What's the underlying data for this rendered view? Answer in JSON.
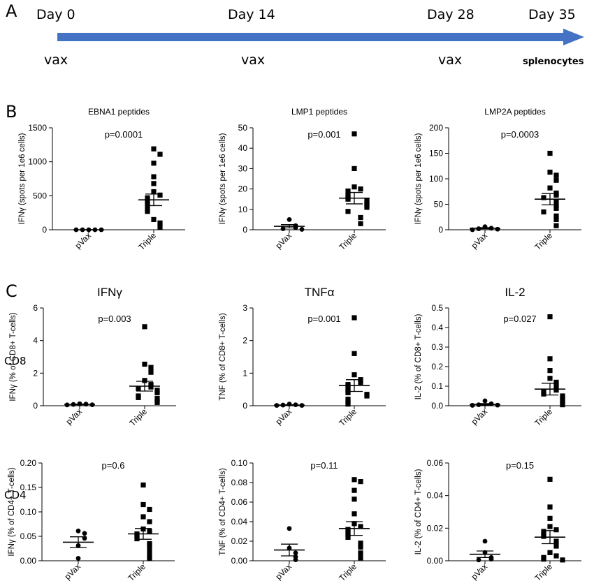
{
  "panels": {
    "a": "A",
    "b": "B",
    "c": "C"
  },
  "timeline": {
    "days": [
      "Day 0",
      "Day 14",
      "Day 28",
      "Day 35"
    ],
    "events": [
      "vax",
      "vax",
      "vax",
      "splenocytes"
    ],
    "arrow_color": "#4472c4"
  },
  "row_labels": {
    "cd8": "CD8",
    "cd4": "CD4"
  },
  "chart_data": [
    {
      "id": "ebna1",
      "type": "scatter",
      "title": "EBNA1 peptides",
      "title_size": 12,
      "ylabel": "IFNγ (spots per 1e6 cells)",
      "pvalue": "p=0.0001",
      "ylim": [
        0,
        1500
      ],
      "yticks": [
        "0",
        "500",
        "1000",
        "1500"
      ],
      "ytick_values": [
        0,
        500,
        1000,
        1500
      ],
      "categories": [
        "pVax",
        "Triple"
      ],
      "series": [
        {
          "name": "pVax",
          "marker": "circle",
          "values": [
            0,
            0,
            0,
            0,
            0
          ],
          "mean": 0,
          "sem": 0
        },
        {
          "name": "Triple",
          "marker": "square",
          "values": [
            1190,
            1110,
            980,
            780,
            680,
            560,
            510,
            470,
            430,
            390,
            360,
            300,
            270,
            150,
            100,
            40
          ],
          "mean": 440,
          "sem": 85
        }
      ]
    },
    {
      "id": "lmp1",
      "type": "scatter",
      "title": "LMP1 peptides",
      "title_size": 12,
      "ylabel": "IFNγ (spots per 1e6 cells)",
      "pvalue": "p=0.001",
      "ylim": [
        0,
        50
      ],
      "yticks": [
        "0",
        "10",
        "20",
        "30",
        "40",
        "50"
      ],
      "ytick_values": [
        0,
        10,
        20,
        30,
        40,
        50
      ],
      "categories": [
        "pVax",
        "Triple"
      ],
      "series": [
        {
          "name": "pVax",
          "marker": "circle",
          "values": [
            5,
            2,
            1,
            0.5,
            0.2
          ],
          "mean": 1.7,
          "sem": 0.8
        },
        {
          "name": "Triple",
          "marker": "square",
          "values": [
            47,
            30,
            21,
            20,
            19,
            17,
            16,
            15,
            14,
            13,
            12,
            11,
            9,
            6,
            3
          ],
          "mean": 15.5,
          "sem": 2.8
        }
      ]
    },
    {
      "id": "lmp2a",
      "type": "scatter",
      "title": "LMP2A peptides",
      "title_size": 12,
      "ylabel": "IFNγ (spots per 1e6 cells)",
      "pvalue": "p=0.0003",
      "ylim": [
        0,
        200
      ],
      "yticks": [
        "0",
        "50",
        "100",
        "150",
        "200"
      ],
      "ytick_values": [
        0,
        50,
        100,
        150,
        200
      ],
      "categories": [
        "pVax",
        "Triple"
      ],
      "series": [
        {
          "name": "pVax",
          "marker": "circle",
          "values": [
            6,
            3,
            2,
            1,
            0
          ],
          "mean": 3,
          "sem": 1
        },
        {
          "name": "Triple",
          "marker": "square",
          "values": [
            150,
            113,
            107,
            97,
            82,
            72,
            68,
            63,
            55,
            47,
            42,
            35,
            27,
            20,
            8
          ],
          "mean": 60,
          "sem": 11
        }
      ]
    },
    {
      "id": "cd8-ifng",
      "type": "scatter",
      "title": "IFNγ",
      "title_size": 17,
      "ylabel": "IFNγ (% of CD8+ T-cells)",
      "pvalue": "p=0.003",
      "ylim": [
        0,
        6
      ],
      "yticks": [
        "0",
        "2",
        "4",
        "6"
      ],
      "ytick_values": [
        0,
        2,
        4,
        6
      ],
      "categories": [
        "pVax",
        "Triple"
      ],
      "series": [
        {
          "name": "pVax",
          "marker": "circle",
          "values": [
            0.12,
            0.1,
            0.08,
            0.06,
            0.05
          ],
          "mean": 0.08,
          "sem": 0.02
        },
        {
          "name": "Triple",
          "marker": "square",
          "values": [
            4.85,
            2.55,
            2.35,
            2.05,
            1.55,
            1.3,
            1.15,
            1.05,
            0.95,
            0.8,
            0.6,
            0.5,
            0.45,
            0.3,
            0.2
          ],
          "mean": 1.2,
          "sem": 0.3
        }
      ]
    },
    {
      "id": "cd8-tnfa",
      "type": "scatter",
      "title": "TNFα",
      "title_size": 17,
      "ylabel": "TNF (% of CD8+ T-cells)",
      "pvalue": "p=0.001",
      "ylim": [
        0,
        3
      ],
      "yticks": [
        "0",
        "1",
        "2",
        "3"
      ],
      "ytick_values": [
        0,
        1,
        2,
        3
      ],
      "categories": [
        "pVax",
        "Triple"
      ],
      "series": [
        {
          "name": "pVax",
          "marker": "circle",
          "values": [
            0.05,
            0.03,
            0.02,
            0.01,
            0.01
          ],
          "mean": 0.02,
          "sem": 0.01
        },
        {
          "name": "Triple",
          "marker": "square",
          "values": [
            2.7,
            1.6,
            0.95,
            0.8,
            0.72,
            0.65,
            0.6,
            0.5,
            0.45,
            0.4,
            0.35,
            0.3,
            0.2,
            0.12,
            0.05
          ],
          "mean": 0.62,
          "sem": 0.18
        }
      ]
    },
    {
      "id": "cd8-il2",
      "type": "scatter",
      "title": "IL-2",
      "title_size": 17,
      "ylabel": "IL-2 (% of CD8+ T-cells)",
      "pvalue": "p=0.027",
      "ylim": [
        0,
        0.5
      ],
      "yticks": [
        "0.0",
        "0.1",
        "0.2",
        "0.3",
        "0.4",
        "0.5"
      ],
      "ytick_values": [
        0,
        0.1,
        0.2,
        0.3,
        0.4,
        0.5
      ],
      "categories": [
        "pVax",
        "Triple"
      ],
      "series": [
        {
          "name": "pVax",
          "marker": "circle",
          "values": [
            0.025,
            0.01,
            0.005,
            0.003,
            0.002
          ],
          "mean": 0.007,
          "sem": 0.004
        },
        {
          "name": "Triple",
          "marker": "square",
          "values": [
            0.455,
            0.24,
            0.18,
            0.14,
            0.12,
            0.1,
            0.08,
            0.07,
            0.06,
            0.05,
            0.04,
            0.03,
            0.02,
            0.01,
            0.005
          ],
          "mean": 0.085,
          "sem": 0.03
        }
      ]
    },
    {
      "id": "cd4-ifng",
      "type": "scatter",
      "title": "",
      "title_size": 12,
      "ylabel": "IFNγ (% of CD4+ T-cells)",
      "pvalue": "p=0.6",
      "ylim": [
        0,
        0.2
      ],
      "yticks": [
        "0.00",
        "0.05",
        "0.10",
        "0.15",
        "0.20"
      ],
      "ytick_values": [
        0,
        0.05,
        0.1,
        0.15,
        0.2
      ],
      "categories": [
        "pVax",
        "Triple"
      ],
      "series": [
        {
          "name": "pVax",
          "marker": "circle",
          "values": [
            0.061,
            0.056,
            0.046,
            0.031,
            0.005
          ],
          "mean": 0.038,
          "sem": 0.011
        },
        {
          "name": "Triple",
          "marker": "square",
          "values": [
            0.155,
            0.115,
            0.105,
            0.09,
            0.08,
            0.065,
            0.06,
            0.055,
            0.05,
            0.045,
            0.035,
            0.03,
            0.02,
            0.01,
            0.005
          ],
          "mean": 0.055,
          "sem": 0.011
        }
      ]
    },
    {
      "id": "cd4-tnf",
      "type": "scatter",
      "title": "",
      "title_size": 12,
      "ylabel": "TNF (% of CD4+ T-cells)",
      "pvalue": "p=0.11",
      "ylim": [
        0,
        0.1
      ],
      "yticks": [
        "0.00",
        "0.02",
        "0.04",
        "0.06",
        "0.08",
        "0.10"
      ],
      "ytick_values": [
        0,
        0.02,
        0.04,
        0.06,
        0.08,
        0.1
      ],
      "categories": [
        "pVax",
        "Triple"
      ],
      "series": [
        {
          "name": "pVax",
          "marker": "circle",
          "values": [
            0.033,
            0.013,
            0.008,
            0.004,
            0.001
          ],
          "mean": 0.011,
          "sem": 0.006
        },
        {
          "name": "Triple",
          "marker": "square",
          "values": [
            0.083,
            0.081,
            0.072,
            0.063,
            0.048,
            0.038,
            0.035,
            0.032,
            0.029,
            0.027,
            0.024,
            0.018,
            0.014,
            0.008,
            0.003
          ],
          "mean": 0.033,
          "sem": 0.007
        }
      ]
    },
    {
      "id": "cd4-il2",
      "type": "scatter",
      "title": "",
      "title_size": 12,
      "ylabel": "IL-2 (% of CD4+ T-cells)",
      "pvalue": "p=0.15",
      "ylim": [
        0,
        0.06
      ],
      "yticks": [
        "0.00",
        "0.02",
        "0.04",
        "0.06"
      ],
      "ytick_values": [
        0,
        0.02,
        0.04,
        0.06
      ],
      "categories": [
        "pVax",
        "Triple"
      ],
      "series": [
        {
          "name": "pVax",
          "marker": "circle",
          "values": [
            0.012,
            0.005,
            0.002,
            0.001,
            0.0005
          ],
          "mean": 0.004,
          "sem": 0.002
        },
        {
          "name": "Triple",
          "marker": "square",
          "values": [
            0.05,
            0.033,
            0.026,
            0.021,
            0.019,
            0.018,
            0.016,
            0.015,
            0.012,
            0.009,
            0.005,
            0.003,
            0.002,
            0.001,
            0.0005
          ],
          "mean": 0.0145,
          "sem": 0.004
        }
      ]
    }
  ]
}
